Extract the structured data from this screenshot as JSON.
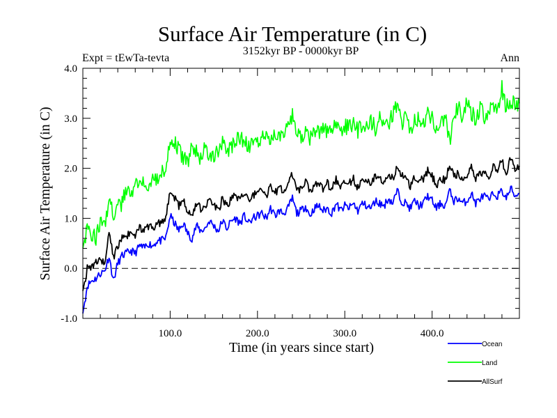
{
  "chart_data": {
    "type": "line",
    "title": "Surface Air Temperature (in C)",
    "subtitle": "3152kyr BP - 0000kyr BP",
    "left_label": "Expt = tEwTa-tevta",
    "right_label": "Ann",
    "xlabel": "Time (in years since start)",
    "ylabel": "Surface Air Temperature (in C)",
    "xlim": [
      0,
      500
    ],
    "ylim": [
      -1.0,
      4.0
    ],
    "xticks": [
      100,
      200,
      300,
      400
    ],
    "xtick_labels": [
      "100.0",
      "200.0",
      "300.0",
      "400.0"
    ],
    "x_minor_step": 20,
    "yticks": [
      -1.0,
      0.0,
      1.0,
      2.0,
      3.0,
      4.0
    ],
    "ytick_labels": [
      "-1.0",
      "0.0",
      "1.0",
      "2.0",
      "3.0",
      "4.0"
    ],
    "y_minor_step": 0.2,
    "reference_line": {
      "y": 0.0,
      "style": "dashed",
      "color": "#000000"
    },
    "grid": false,
    "legend_position": "bottom-right, below plot",
    "x": [
      0,
      5,
      10,
      15,
      20,
      25,
      30,
      35,
      40,
      45,
      50,
      55,
      60,
      65,
      70,
      75,
      80,
      85,
      90,
      95,
      100,
      105,
      110,
      115,
      120,
      125,
      130,
      135,
      140,
      145,
      150,
      155,
      160,
      165,
      170,
      175,
      180,
      185,
      190,
      195,
      200,
      205,
      210,
      215,
      220,
      225,
      230,
      235,
      240,
      245,
      250,
      255,
      260,
      265,
      270,
      275,
      280,
      285,
      290,
      295,
      300,
      305,
      310,
      315,
      320,
      325,
      330,
      335,
      340,
      345,
      350,
      355,
      360,
      365,
      370,
      375,
      380,
      385,
      390,
      395,
      400,
      405,
      410,
      415,
      420,
      425,
      430,
      435,
      440,
      445,
      450,
      455,
      460,
      465,
      470,
      475,
      480,
      485,
      490,
      495,
      500
    ],
    "series": [
      {
        "name": "Ocean",
        "color": "#0000ff",
        "values": [
          -0.9,
          -0.35,
          -0.25,
          -0.2,
          -0.1,
          -0.05,
          0.25,
          -0.25,
          0.1,
          0.25,
          0.3,
          0.35,
          0.3,
          0.45,
          0.4,
          0.5,
          0.45,
          0.55,
          0.55,
          0.6,
          1.05,
          0.9,
          0.75,
          0.9,
          0.7,
          0.6,
          0.85,
          0.75,
          0.8,
          0.95,
          0.85,
          0.75,
          0.95,
          0.8,
          0.95,
          1.0,
          0.9,
          1.05,
          0.9,
          1.0,
          1.05,
          1.1,
          1.0,
          1.2,
          1.05,
          1.15,
          1.1,
          1.2,
          1.4,
          1.1,
          1.15,
          1.25,
          1.05,
          1.2,
          1.25,
          1.15,
          1.2,
          1.1,
          1.3,
          1.15,
          1.25,
          1.2,
          1.3,
          1.15,
          1.3,
          1.25,
          1.2,
          1.35,
          1.3,
          1.25,
          1.4,
          1.3,
          1.55,
          1.35,
          1.3,
          1.2,
          1.35,
          1.25,
          1.3,
          1.45,
          1.35,
          1.2,
          1.3,
          1.25,
          1.55,
          1.35,
          1.4,
          1.3,
          1.35,
          1.5,
          1.3,
          1.4,
          1.45,
          1.35,
          1.5,
          1.45,
          1.55,
          1.4,
          1.6,
          1.45,
          1.5
        ]
      },
      {
        "name": "Land",
        "color": "#00ff00",
        "values": [
          0.4,
          0.85,
          0.7,
          0.6,
          0.9,
          0.8,
          1.45,
          1.0,
          1.2,
          1.3,
          1.6,
          1.4,
          1.7,
          1.65,
          1.75,
          1.7,
          1.85,
          1.8,
          1.9,
          2.0,
          2.6,
          2.5,
          2.4,
          2.2,
          2.1,
          2.5,
          2.35,
          2.2,
          2.4,
          2.3,
          2.2,
          2.35,
          2.5,
          2.3,
          2.4,
          2.55,
          2.6,
          2.5,
          2.45,
          2.55,
          2.5,
          2.6,
          2.7,
          2.55,
          2.75,
          2.6,
          2.65,
          2.8,
          3.05,
          2.7,
          2.6,
          2.8,
          2.55,
          2.75,
          2.7,
          2.85,
          2.75,
          2.8,
          2.9,
          2.7,
          2.85,
          2.8,
          2.95,
          2.75,
          2.9,
          2.85,
          2.95,
          2.8,
          3.05,
          2.85,
          2.9,
          3.1,
          3.3,
          2.9,
          3.05,
          2.8,
          2.95,
          3.0,
          2.85,
          3.1,
          3.0,
          2.75,
          2.9,
          3.05,
          2.5,
          3.1,
          3.25,
          3.0,
          3.35,
          3.1,
          3.0,
          3.2,
          3.05,
          3.15,
          3.3,
          3.15,
          3.6,
          3.2,
          3.35,
          3.25,
          3.3
        ]
      },
      {
        "name": "AllSurf",
        "color": "#000000",
        "values": [
          -0.45,
          0.0,
          0.05,
          0.1,
          0.15,
          0.1,
          0.75,
          0.2,
          0.45,
          0.6,
          0.65,
          0.7,
          0.65,
          0.8,
          0.75,
          0.85,
          0.8,
          0.9,
          0.9,
          1.0,
          1.55,
          1.4,
          1.25,
          1.4,
          1.15,
          1.05,
          1.3,
          1.2,
          1.25,
          1.4,
          1.3,
          1.15,
          1.4,
          1.25,
          1.4,
          1.45,
          1.35,
          1.5,
          1.35,
          1.45,
          1.5,
          1.6,
          1.45,
          1.65,
          1.5,
          1.6,
          1.55,
          1.65,
          1.9,
          1.55,
          1.6,
          1.75,
          1.5,
          1.7,
          1.7,
          1.6,
          1.7,
          1.55,
          1.8,
          1.6,
          1.75,
          1.7,
          1.8,
          1.6,
          1.8,
          1.75,
          1.7,
          1.85,
          1.8,
          1.75,
          1.9,
          1.8,
          2.05,
          1.85,
          1.8,
          1.65,
          1.85,
          1.75,
          1.8,
          1.95,
          1.85,
          1.65,
          1.8,
          1.75,
          2.1,
          1.85,
          1.9,
          1.8,
          1.85,
          2.05,
          1.8,
          1.9,
          1.95,
          1.85,
          2.05,
          1.95,
          2.15,
          1.9,
          2.2,
          2.0,
          2.05
        ]
      }
    ]
  }
}
